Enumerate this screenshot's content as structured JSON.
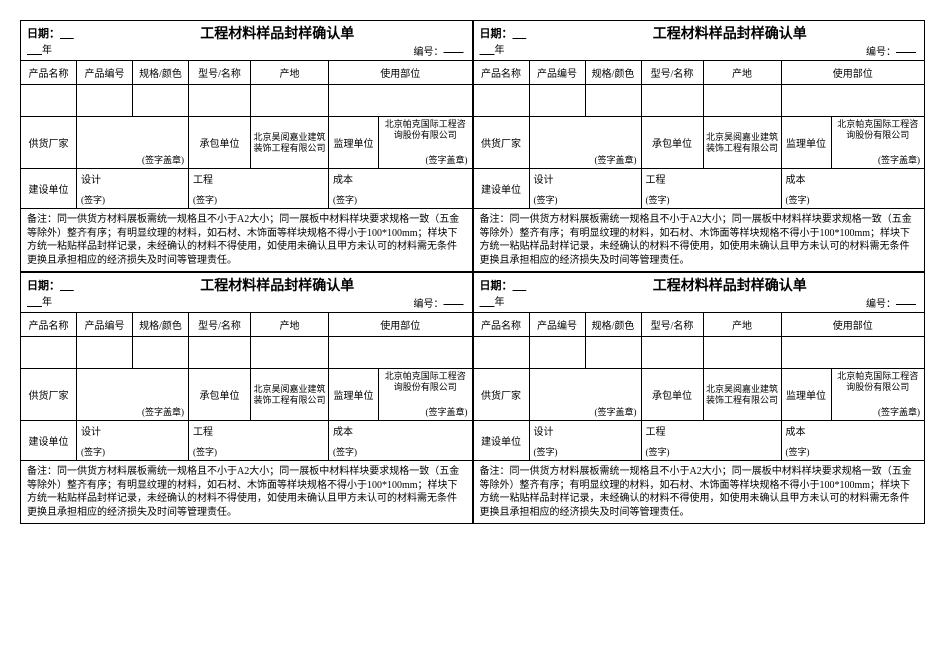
{
  "common": {
    "title": "工程材料样品封样确认单",
    "date_label": "日期：",
    "year_suffix": "年",
    "serial_label": "编号：",
    "headers": {
      "product_name": "产品名称",
      "product_code": "产品编号",
      "spec_color": "规格/颜色",
      "model_name": "型号/名称",
      "origin": "产地",
      "usage": "使用部位"
    },
    "supplier_label": "供货厂家",
    "sign_seal": "(签字盖章)",
    "contractor_label": "承包单位",
    "supervisor_label": "监理单位",
    "builder_label": "建设单位",
    "design_label": "设计",
    "engineering_label": "工程",
    "cost_label": "成本",
    "sign": "(签字)",
    "notes_prefix": "备注："
  },
  "forms": [
    {
      "contractor_company": "北京昊阅嘉业建筑装饰工程有限公司",
      "supervisor_company": "北京帕克国际工程咨询股份有限公司",
      "notes": "同一供货方材料展板需统一规格且不小于A2大小；同一展板中材料样块要求规格一致（五金等除外）整齐有序；有明显纹理的材料，如石材、木饰面等样块规格不得小于100*100mm；样块下方统一粘贴样品封样记录，未经确认的材料不得使用，如使用未确认且甲方未认可的材料需无条件更换且承担相应的经济损失及时间等管理责任。"
    },
    {
      "contractor_company": "北京昊阅嘉业建筑装饰工程有限公司",
      "supervisor_company": "北京帕克国际工程咨询股份有限公司",
      "notes": "同一供货方材料展板需统一规格且不小于A2大小；同一展板中材料样块要求规格一致（五金等除外）整齐有序；有明显纹理的材料，如石材、木饰面等样块规格不得小于100*100mm；样块下方统一粘贴样品封样记录，未经确认的材料不得使用，如使用未确认且甲方未认可的材料需无条件更换且承担相应的经济损失及时间等管理责任。"
    },
    {
      "contractor_company": "北京昊阅嘉业建筑装饰工程有限公司",
      "supervisor_company": "北京帕克国际工程咨询股份有限公司",
      "notes": "同一供货方材料展板需统一规格且不小于A2大小；同一展板中材料样块要求规格一致（五金等除外）整齐有序；有明显纹理的材料，如石材、木饰面等样块规格不得小于100*100mm；样块下方统一粘贴样品封样记录，未经确认的材料不得使用，如使用未确认且甲方未认可的材料需无条件更换且承担相应的经济损失及时间等管理责任。"
    },
    {
      "contractor_company": "北京昊阅嘉业建筑装饰工程有限公司",
      "supervisor_company": "北京帕克国际工程咨询股份有限公司",
      "notes": "同一供货方材料展板需统一规格且不小于A2大小；同一展板中材料样块要求规格一致（五金等除外）整齐有序；有明显纹理的材料，如石材、木饰面等样块规格不得小于100*100mm；样块下方统一粘贴样品封样记录，未经确认的材料不得使用，如使用未确认且甲方未认可的材料需无条件更换且承担相应的经济损失及时间等管理责任。"
    }
  ],
  "styling": {
    "border_color": "#000000",
    "background_color": "#ffffff",
    "title_fontsize": 14,
    "body_fontsize": 11,
    "small_fontsize": 10,
    "tiny_fontsize": 9,
    "font_family": "SimSun"
  }
}
